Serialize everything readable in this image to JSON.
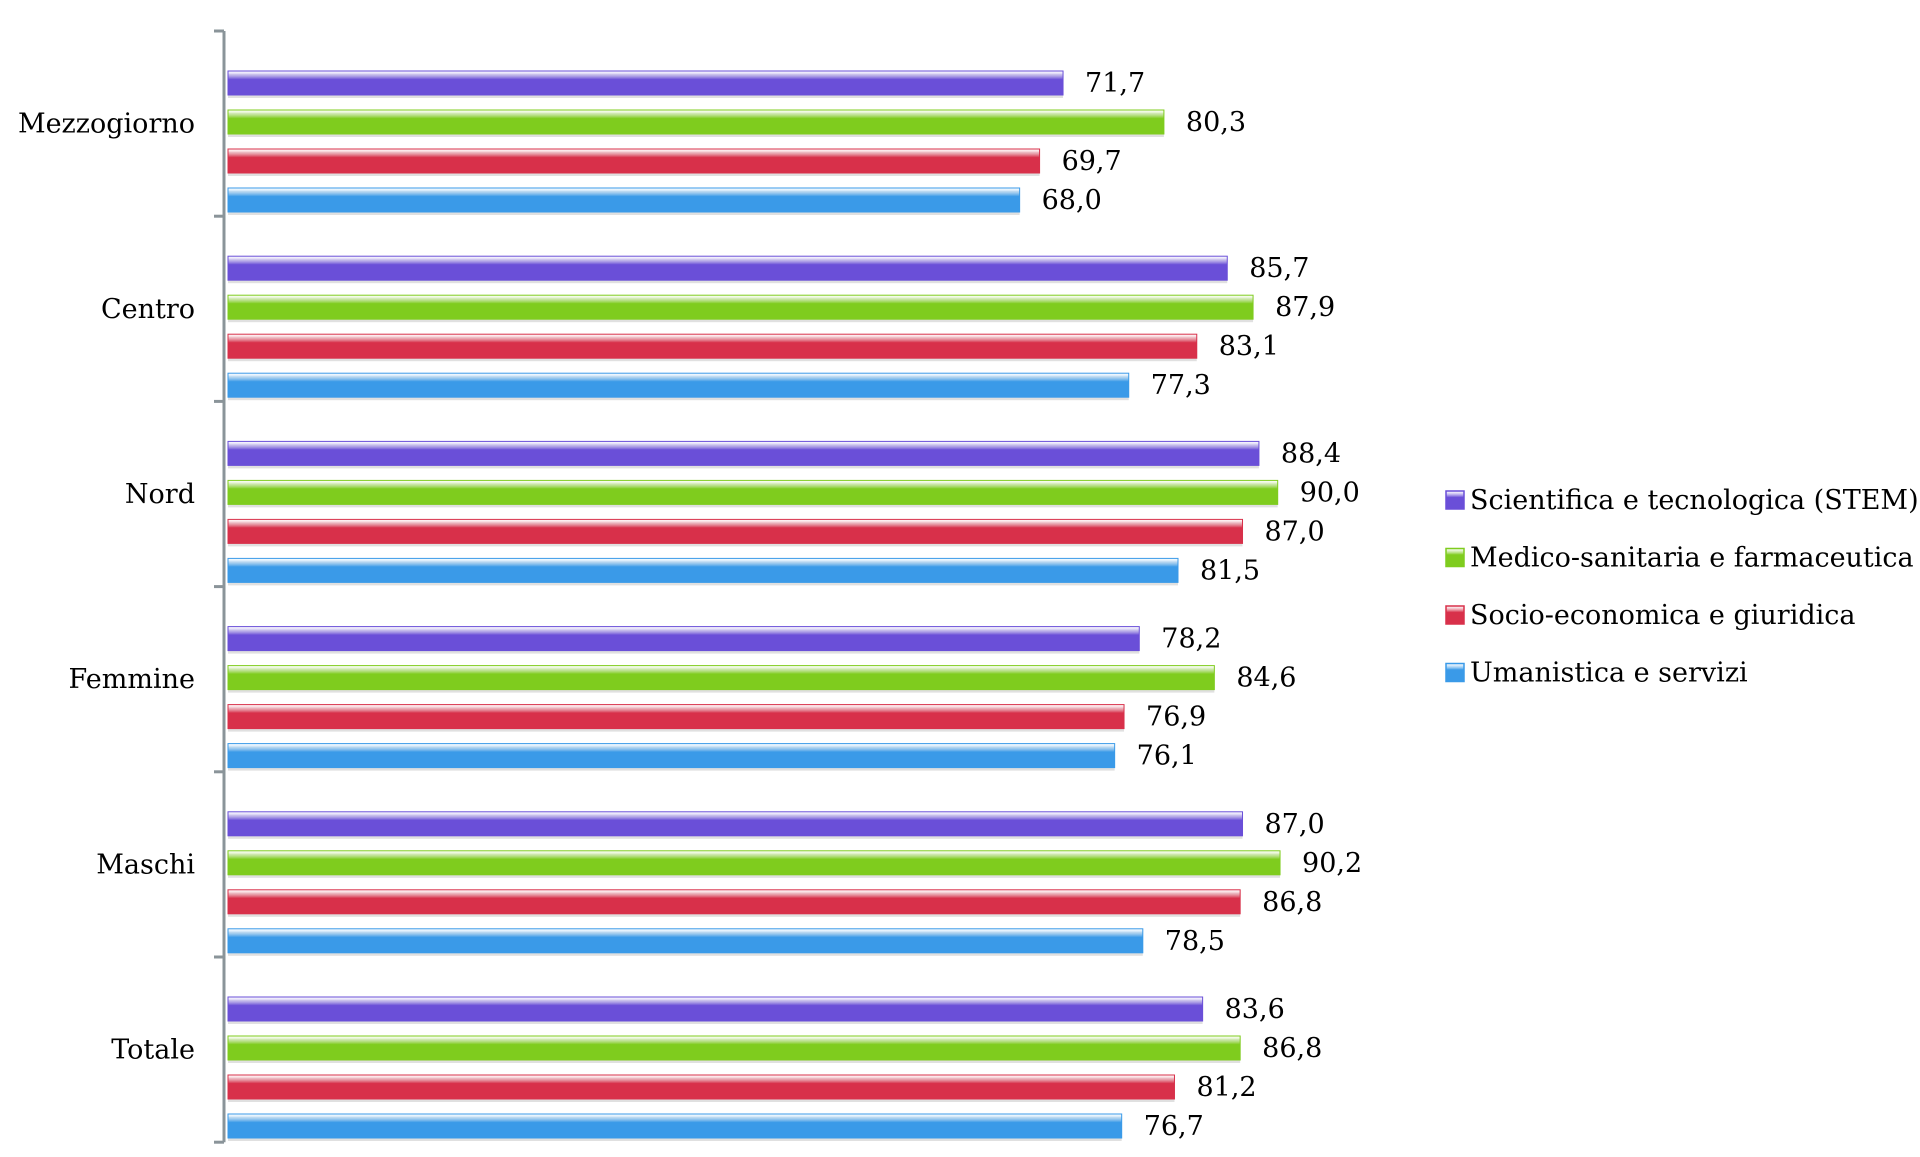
{
  "chart_data": {
    "type": "bar",
    "orientation": "horizontal",
    "categories": [
      "Mezzogiorno",
      "Centro",
      "Nord",
      "Femmine",
      "Maschi",
      "Totale"
    ],
    "series": [
      {
        "name": "Scientifica e tecnologica (STEM)",
        "color": "#6a4fd8",
        "values": [
          71.7,
          85.7,
          88.4,
          78.2,
          87.0,
          83.6
        ]
      },
      {
        "name": "Medico-sanitaria e farmaceutica",
        "color": "#7fcc1e",
        "values": [
          80.3,
          87.9,
          90.0,
          84.6,
          90.2,
          86.8
        ]
      },
      {
        "name": "Socio-economica e giuridica",
        "color": "#d8304a",
        "values": [
          69.7,
          83.1,
          87.0,
          76.9,
          86.8,
          81.2
        ]
      },
      {
        "name": "Umanistica e servizi",
        "color": "#3a9ae8",
        "values": [
          68.0,
          77.3,
          81.5,
          76.1,
          78.5,
          76.7
        ]
      }
    ],
    "value_labels": [
      [
        "71,7",
        "85,7",
        "88,4",
        "78,2",
        "87,0",
        "83,6"
      ],
      [
        "80,3",
        "87,9",
        "90,0",
        "84,6",
        "90,2",
        "86,8"
      ],
      [
        "69,7",
        "83,1",
        "87,0",
        "76,9",
        "86,8",
        "81,2"
      ],
      [
        "68,0",
        "77,3",
        "81,5",
        "76,1",
        "78,5",
        "76,7"
      ]
    ],
    "title": "",
    "xlabel": "",
    "ylabel": "",
    "xlim": [
      0,
      100
    ],
    "grid": false,
    "legend_position": "right"
  }
}
